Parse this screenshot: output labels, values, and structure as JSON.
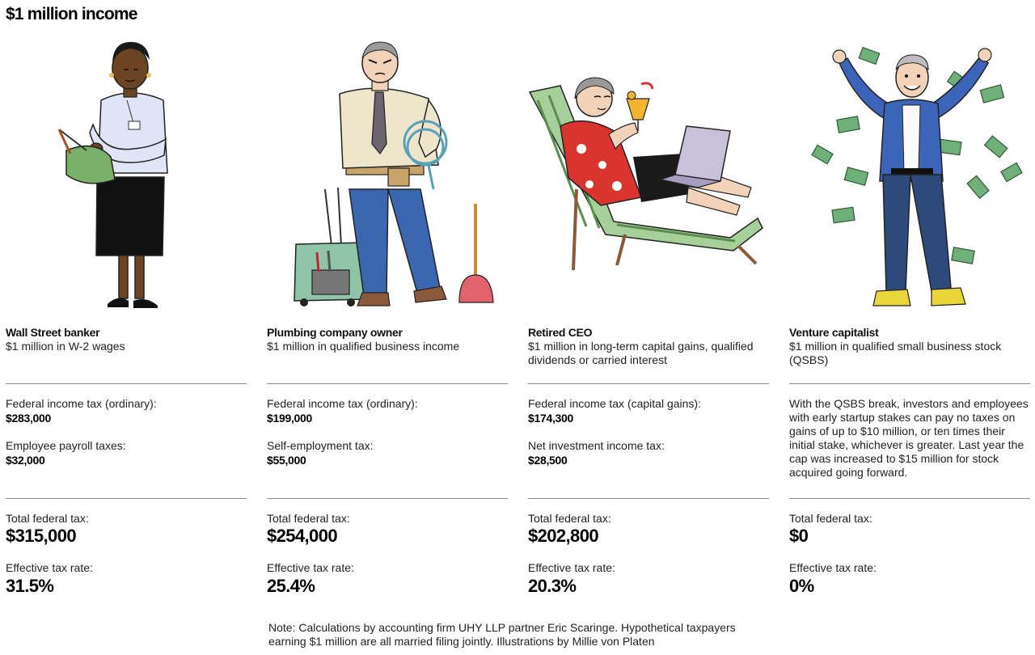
{
  "title": "$1 million income",
  "personas": [
    {
      "name": "Wall Street banker",
      "description": "$1 million in W-2 wages",
      "tax_line_1_label": "Federal income tax (ordinary):",
      "tax_line_1_value": "$283,000",
      "tax_line_2_label": "Employee payroll taxes:",
      "tax_line_2_value": "$32,000",
      "total_label": "Total federal tax:",
      "total_value": "$315,000",
      "rate_label": "Effective tax rate:",
      "rate_value": "31.5%"
    },
    {
      "name": "Plumbing company owner",
      "description": "$1 million in qualified business income",
      "tax_line_1_label": "Federal income tax (ordinary):",
      "tax_line_1_value": "$199,000",
      "tax_line_2_label": "Self-employment tax:",
      "tax_line_2_value": "$55,000",
      "total_label": "Total federal tax:",
      "total_value": "$254,000",
      "rate_label": "Effective tax rate:",
      "rate_value": "25.4%"
    },
    {
      "name": "Retired CEO",
      "description": "$1 million in long-term capital gains, qualified dividends or carried interest",
      "tax_line_1_label": "Federal income tax (capital gains):",
      "tax_line_1_value": "$174,300",
      "tax_line_2_label": "Net investment income tax:",
      "tax_line_2_value": "$28,500",
      "total_label": "Total federal tax:",
      "total_value": "$202,800",
      "rate_label": "Effective tax rate:",
      "rate_value": "20.3%"
    },
    {
      "name": "Venture capitalist",
      "description": "$1 million in qualified small business stock (QSBS)",
      "note": "With the QSBS break, investors and employees with early startup stakes can pay no taxes on gains of up to $10 million, or ten times their initial stake, whichever is greater. Last year the cap was increased to $15 million for stock acquired going forward.",
      "total_label": "Total federal tax:",
      "total_value": "$0",
      "rate_label": "Effective tax rate:",
      "rate_value": "0%"
    }
  ],
  "footnote": "Note: Calculations by accounting firm UHY LLP partner Eric Scaringe. Hypothetical taxpayers earning $1 million are all married filing jointly. Illustrations by Millie von Platen",
  "colors": {
    "rule": "#8a8a8a",
    "money_green": "#6fb07a",
    "skin_dark": "#6b4423",
    "skin_light": "#f2d2b8"
  }
}
